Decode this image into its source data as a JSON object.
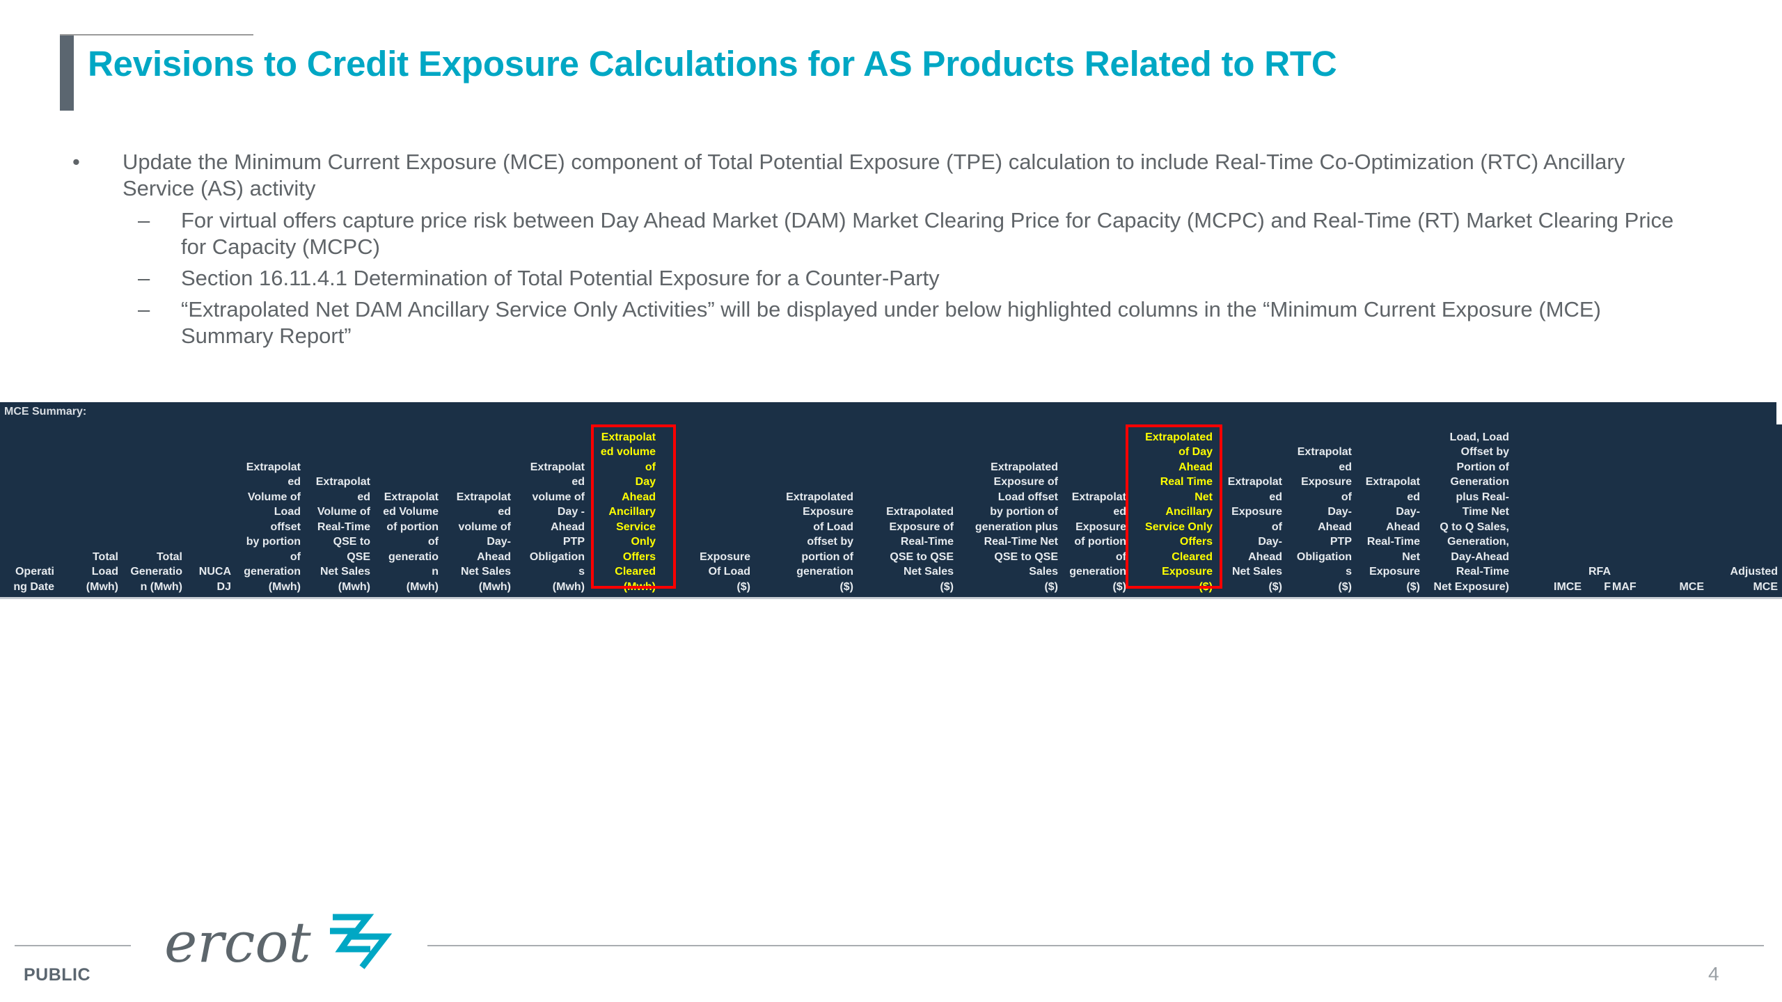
{
  "title": "Revisions to Credit Exposure Calculations for AS Products Related to RTC",
  "bullets": {
    "main": "Update the Minimum Current Exposure (MCE) component of Total Potential Exposure (TPE) calculation to include Real-Time Co-Optimization (RTC) Ancillary Service (AS) activity",
    "subs": [
      "For virtual offers capture price risk between Day Ahead Market (DAM) Market Clearing Price for Capacity (MCPC) and Real-Time (RT) Market Clearing Price for Capacity (MCPC)",
      "Section 16.11.4.1 Determination of Total Potential Exposure for a Counter-Party",
      "“Extrapolated Net DAM Ancillary Service Only Activities” will be displayed under below highlighted columns in the “Minimum Current Exposure (MCE) Summary Report”"
    ],
    "bullet_mark": "•",
    "dash_mark": "–"
  },
  "mce_table": {
    "header": "MCE Summary:",
    "columns": [
      "Operati\nng Date",
      "Total\nLoad\n(Mwh)",
      "Total\nGeneratio\nn (Mwh)",
      "NUCA\nDJ",
      "Extrapolat\ned\nVolume of\nLoad\noffset\nby portion\nof\ngeneration\n(Mwh)",
      "Extrapolat\ned\nVolume of\nReal-Time\nQSE to\nQSE\nNet Sales\n(Mwh)",
      "Extrapolat\ned Volume\nof portion\nof\ngeneratio\nn\n(Mwh)",
      "Extrapolat\ned\nvolume of\nDay-\nAhead\nNet Sales\n(Mwh)",
      "Extrapolat\ned\nvolume of\nDay -\nAhead\nPTP\nObligation\ns\n(Mwh)",
      "Extrapolat\ned volume\nof\nDay\nAhead\nAncillary\nService\nOnly\nOffers\nCleared\n(Mwh)",
      "Exposure\nOf Load\n($)",
      "Extrapolated\nExposure\nof Load\noffset by\nportion of\ngeneration\n($)",
      "Extrapolated\nExposure of\nReal-Time\nQSE to QSE\nNet Sales\n($)",
      "Extrapolated\nExposure of\nLoad offset\nby portion of\ngeneration plus\nReal-Time Net\nQSE to QSE\nSales\n($)",
      "Extrapolat\ned\nExposure\nof portion\nof\ngeneration\n($)",
      "Extrapolated\nof Day\nAhead\nReal Time\nNet\nAncillary\nService Only\nOffers\nCleared\nExposure\n($)",
      "Extrapolat\ned\nExposure\nof\nDay-\nAhead\nNet Sales\n($)",
      "Extrapolat\ned\nExposure\nof\nDay-\nAhead\nPTP\nObligation\ns\n($)",
      "Extrapolat\ned\nDay-\nAhead\nReal-Time\nNet\nExposure\n($)",
      "Load,  Load\nOffset by\nPortion of\nGeneration\nplus   Real-\nTime Net\nQ to Q Sales,\nGeneration,\nDay-Ahead\nReal-Time\nNet Exposure)",
      "IMCE",
      "RFA\nF",
      "MAF",
      "MCE",
      "Adjusted\nMCE"
    ]
  },
  "footer": {
    "logo_text": "ercot",
    "classification": "PUBLIC",
    "page_number": "4"
  },
  "colors": {
    "title": "#00a7c4",
    "table_bg": "#1b3046",
    "highlight_text": "#ffff00",
    "highlight_border": "#ff0000",
    "logo_accent": "#00a7c4"
  }
}
